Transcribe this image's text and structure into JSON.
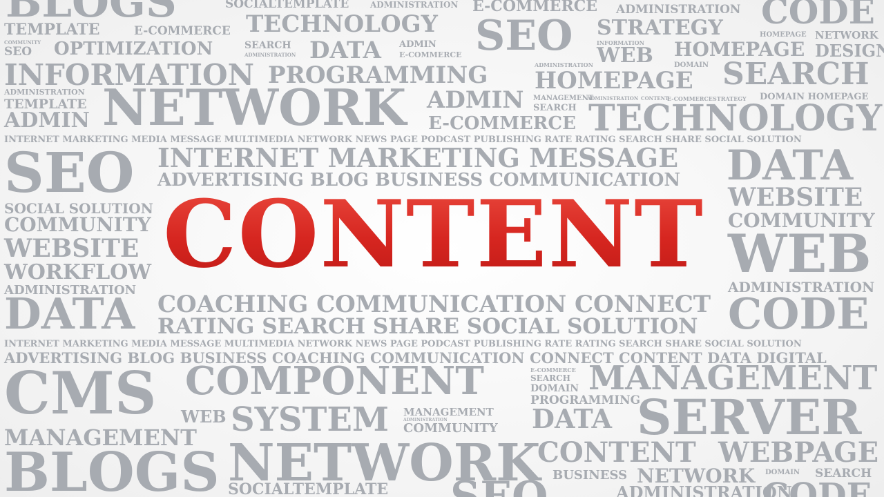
{
  "hero": {
    "text": "CONTENT",
    "color": "#d82a22"
  },
  "word_color": "#a7abb1",
  "words": [
    "BLOGS",
    "SOCIALTEMPLATE",
    "ADMINISTRATION",
    "E-COMMERCE",
    "ADMINISTRATION",
    "CODE",
    "TEMPLATE",
    "E-COMMERCE",
    "TECHNOLOGY",
    "SEO",
    "STRATEGY",
    "HOMEPAGE",
    "NETWORK",
    "COMMUNITY",
    "SEO",
    "OPTIMIZATION",
    "SEARCH",
    "ADMINISTRATION",
    "DATA",
    "ADMIN",
    "E-COMMERCE",
    "INFORMATION",
    "WEB",
    "HOMEPAGE",
    "DESIGN",
    "INFORMATION",
    "ADMINISTRATION",
    "DOMAIN",
    "PROGRAMMING",
    "HOMEPAGE",
    "SEARCH",
    "ADMINISTRATION",
    "TEMPLATE",
    "NETWORK",
    "ADMIN",
    "MANAGEMENT",
    "ADMINISTRATION",
    "CONTENT",
    "E-COMMERCE",
    "STRATEGY",
    "DOMAIN HOMEPAGE",
    "ADMIN",
    "E-COMMERCE",
    "SEARCH",
    "TECHNOLOGY",
    "INTERNET MARKETING MEDIA MESSAGE MULTIMEDIA NETWORK NEWS PAGE PODCAST PUBLISHING RATE RATING SEARCH SHARE SOCIAL SOLUTION",
    "SEO",
    "INTERNET MARKETING MESSAGE",
    "DATA",
    "ADVERTISING BLOG BUSINESS COMMUNICATION",
    "WEBSITE",
    "SOCIAL SOLUTION",
    "COMMUNITY",
    "COMMUNITY",
    "WEBSITE",
    "WEB",
    "WORKFLOW",
    "ADMINISTRATION",
    "ADMINISTRATION",
    "COACHING COMMUNICATION CONNECT",
    "DATA",
    "CODE",
    "RATING SEARCH SHARE SOCIAL SOLUTION",
    "INTERNET MARKETING MEDIA MESSAGE MULTIMEDIA NETWORK NEWS PAGE PODCAST PUBLISHING RATE RATING SEARCH SHARE SOCIAL SOLUTION",
    "ADVERTISING BLOG BUSINESS COACHING COMMUNICATION CONNECT CONTENT DATA DIGITAL",
    "CMS",
    "COMPONENT",
    "E-COMMERCE",
    "SEARCH",
    "DOMAIN",
    "MANAGEMENT",
    "PROGRAMMING",
    "WEB",
    "SYSTEM",
    "MANAGEMENT",
    "ADMINISTRATION",
    "COMMUNITY",
    "DATA",
    "SERVER",
    "MANAGEMENT",
    "CONTENT",
    "WEBPAGE",
    "BLOGS",
    "NETWORK",
    "BUSINESS",
    "NETWORK",
    "DOMAIN",
    "SEARCH",
    "SOCIALTEMPLATE",
    "SEO",
    "ADMINISTRATION",
    "CODE"
  ]
}
